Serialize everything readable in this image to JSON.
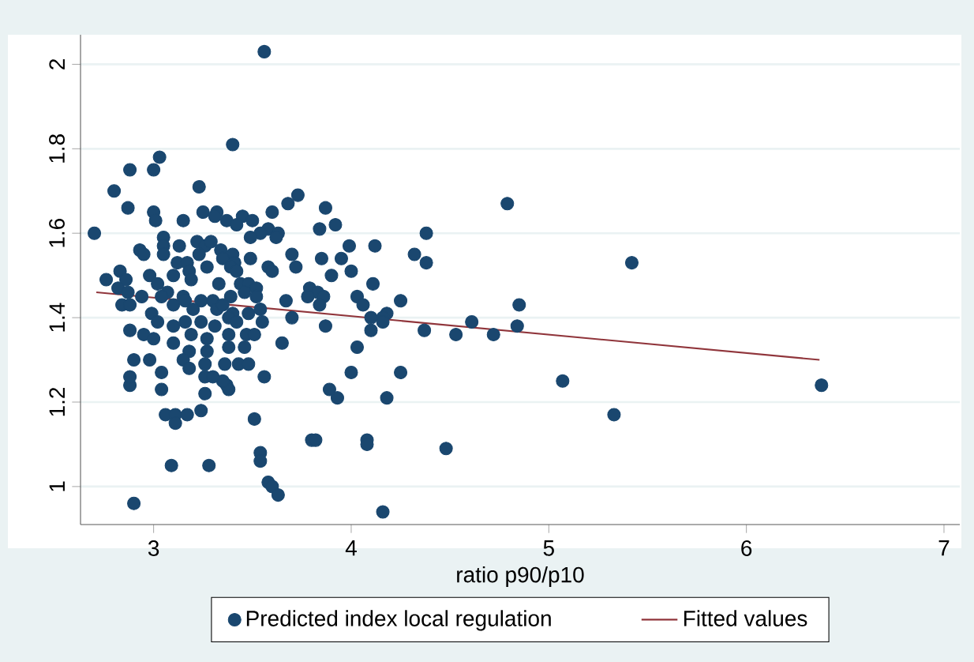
{
  "chart_data": {
    "type": "scatter",
    "xlabel": "ratio p90/p10",
    "xlim": [
      2.63,
      7.08
    ],
    "ylim": [
      0.91,
      2.07
    ],
    "xticks": [
      3,
      4,
      5,
      6,
      7
    ],
    "yticks": [
      1,
      1.2,
      1.4,
      1.6,
      1.8,
      2
    ],
    "grid": "y",
    "legend": "bottom",
    "series": [
      {
        "name": "Predicted index local regulation",
        "color": "#1a476f",
        "marker": "circle",
        "x": [
          2.7,
          3.56,
          3.4,
          3.03,
          3.0,
          2.88,
          2.8,
          2.87,
          3.23,
          3.73,
          3.68,
          3.87,
          3.0,
          3.01,
          3.25,
          3.32,
          3.31,
          3.15,
          3.37,
          3.45,
          3.5,
          3.6,
          3.42,
          3.58,
          3.54,
          3.63,
          3.62,
          3.84,
          3.92,
          3.05,
          3.05,
          3.49,
          3.99,
          4.12,
          3.13,
          3.22,
          3.26,
          3.29,
          2.93,
          2.95,
          4.18,
          3.37,
          3.38,
          2.88,
          3.04,
          3.26,
          3.89,
          3.93,
          4.18,
          3.06,
          3.11,
          3.11,
          3.17,
          3.24,
          3.51,
          3.8,
          3.82,
          4.08,
          4.08,
          3.09,
          3.28,
          3.54,
          3.54,
          3.58,
          3.6,
          3.63,
          2.9,
          4.16,
          3.35,
          3.26,
          4.79,
          4.38,
          4.32,
          4.38,
          4.25,
          4.16,
          4.16,
          4.37,
          4.53,
          4.61,
          4.72,
          4.84,
          4.85,
          5.42,
          4.25,
          5.07,
          5.33,
          4.48,
          6.38,
          3.23,
          3.34,
          3.4,
          3.05,
          3.12,
          3.17,
          3.35,
          3.41,
          3.49,
          3.7,
          3.85,
          3.95,
          3.39,
          3.42,
          3.58,
          3.6,
          3.72,
          2.83,
          3.18,
          3.27,
          4.0,
          4.11,
          2.76,
          2.86,
          2.98,
          3.02,
          3.1,
          3.19,
          3.33,
          3.44,
          3.48,
          3.52,
          3.15,
          3.07,
          3.04,
          2.82,
          2.87,
          3.39,
          3.46,
          3.52,
          3.79,
          3.83,
          3.9,
          3.78,
          3.86,
          4.03,
          4.06,
          2.84,
          2.88,
          2.94,
          3.1,
          3.16,
          3.24,
          3.3,
          3.32,
          3.35,
          3.2,
          3.4,
          3.48,
          3.54,
          3.67,
          3.84,
          2.99,
          3.02,
          3.1,
          3.16,
          3.24,
          3.31,
          3.38,
          3.42,
          3.55,
          3.7,
          3.87,
          4.1,
          4.1,
          2.88,
          2.95,
          3.0,
          3.1,
          3.19,
          3.27,
          3.38,
          3.47,
          3.51,
          3.65,
          3.38,
          3.46,
          3.18,
          3.27,
          4.03,
          2.9,
          2.98,
          3.04,
          3.15,
          3.18,
          3.26,
          3.36,
          3.43,
          3.48,
          3.3,
          3.56,
          4.0,
          2.88
        ],
        "values": [
          1.6,
          2.03,
          1.81,
          1.78,
          1.75,
          1.75,
          1.7,
          1.66,
          1.71,
          1.69,
          1.67,
          1.66,
          1.65,
          1.63,
          1.65,
          1.65,
          1.64,
          1.63,
          1.63,
          1.64,
          1.63,
          1.65,
          1.62,
          1.61,
          1.6,
          1.6,
          1.59,
          1.61,
          1.62,
          1.59,
          1.57,
          1.59,
          1.57,
          1.57,
          1.57,
          1.58,
          1.57,
          1.58,
          1.56,
          1.55,
          1.41,
          1.24,
          1.23,
          1.24,
          1.23,
          1.22,
          1.23,
          1.21,
          1.21,
          1.17,
          1.17,
          1.15,
          1.17,
          1.18,
          1.16,
          1.11,
          1.11,
          1.11,
          1.1,
          1.05,
          1.05,
          1.08,
          1.06,
          1.01,
          1.0,
          0.98,
          0.96,
          0.94,
          1.25,
          1.26,
          1.67,
          1.6,
          1.55,
          1.53,
          1.44,
          1.4,
          1.39,
          1.37,
          1.36,
          1.39,
          1.36,
          1.38,
          1.43,
          1.53,
          1.27,
          1.25,
          1.17,
          1.09,
          1.24,
          1.55,
          1.56,
          1.55,
          1.55,
          1.53,
          1.53,
          1.54,
          1.53,
          1.54,
          1.55,
          1.54,
          1.54,
          1.52,
          1.51,
          1.52,
          1.51,
          1.52,
          1.51,
          1.51,
          1.52,
          1.51,
          1.48,
          1.49,
          1.49,
          1.5,
          1.48,
          1.5,
          1.49,
          1.48,
          1.48,
          1.48,
          1.47,
          1.45,
          1.46,
          1.45,
          1.47,
          1.46,
          1.45,
          1.46,
          1.45,
          1.47,
          1.46,
          1.5,
          1.45,
          1.45,
          1.45,
          1.43,
          1.43,
          1.43,
          1.45,
          1.43,
          1.44,
          1.44,
          1.44,
          1.42,
          1.43,
          1.42,
          1.41,
          1.41,
          1.42,
          1.44,
          1.43,
          1.41,
          1.39,
          1.38,
          1.39,
          1.39,
          1.38,
          1.4,
          1.39,
          1.39,
          1.4,
          1.38,
          1.4,
          1.37,
          1.37,
          1.36,
          1.35,
          1.34,
          1.36,
          1.35,
          1.36,
          1.36,
          1.36,
          1.34,
          1.33,
          1.33,
          1.32,
          1.32,
          1.33,
          1.3,
          1.3,
          1.27,
          1.3,
          1.28,
          1.29,
          1.29,
          1.29,
          1.29,
          1.26,
          1.26,
          1.27,
          1.26
        ]
      },
      {
        "name": "Fitted values",
        "type": "line",
        "marker": "none",
        "color": "#90353b",
        "x": [
          2.71,
          6.37
        ],
        "values": [
          1.46,
          1.3
        ]
      }
    ]
  }
}
